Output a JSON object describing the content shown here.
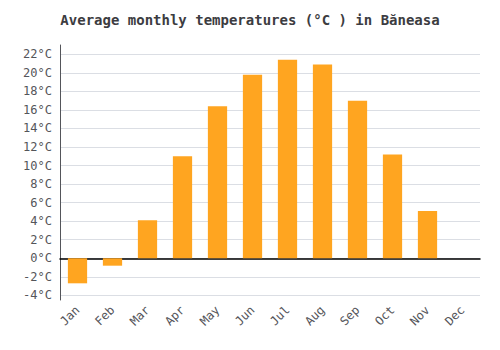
{
  "chart_data": {
    "type": "bar",
    "title": "Average monthly temperatures (°C ) in Băneasa",
    "categories": [
      "Jan",
      "Feb",
      "Mar",
      "Apr",
      "May",
      "Jun",
      "Jul",
      "Aug",
      "Sep",
      "Oct",
      "Nov",
      "Dec"
    ],
    "values": [
      -2.7,
      -0.8,
      4.1,
      11.0,
      16.4,
      19.8,
      21.4,
      20.9,
      17.0,
      11.2,
      5.1,
      0.0
    ],
    "color": "#FFA520",
    "ylim": [
      -4.5,
      23
    ],
    "yticks": [
      {
        "value": -4,
        "label": "-4°C"
      },
      {
        "value": -2,
        "label": "-2°C"
      },
      {
        "value": 0,
        "label": "0°C"
      },
      {
        "value": 2,
        "label": "2°C"
      },
      {
        "value": 4,
        "label": "4°C"
      },
      {
        "value": 6,
        "label": "6°C"
      },
      {
        "value": 8,
        "label": "8°C"
      },
      {
        "value": 10,
        "label": "10°C"
      },
      {
        "value": 12,
        "label": "12°C"
      },
      {
        "value": 14,
        "label": "14°C"
      },
      {
        "value": 16,
        "label": "16°C"
      },
      {
        "value": 18,
        "label": "18°C"
      },
      {
        "value": 20,
        "label": "20°C"
      },
      {
        "value": 22,
        "label": "22°C"
      }
    ],
    "grid": true
  }
}
